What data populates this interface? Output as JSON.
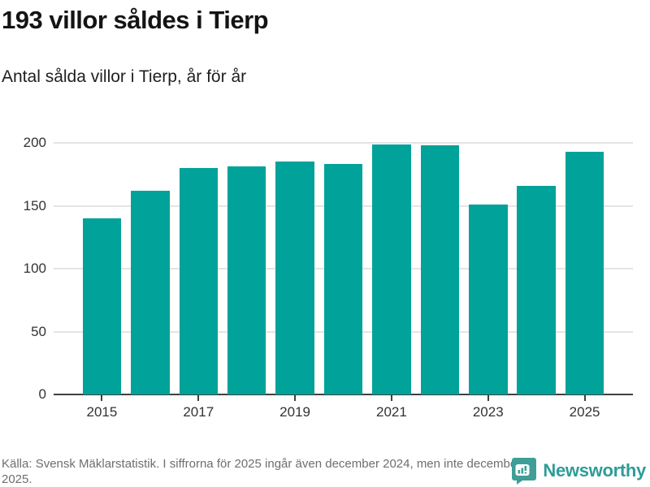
{
  "title": "193 villor såldes i Tierp",
  "subtitle": "Antal sålda villor i Tierp, år för år",
  "footer": {
    "source": "Källa: Svensk Mäklarstatistik. I siffrorna för 2025 ingår även december 2024, men inte december 2025.",
    "brand": "Newsworthy"
  },
  "colors": {
    "bar": "#00a29a",
    "axis": "#404040",
    "grid": "#e4e4e4",
    "brand_teal": "#2e9c96",
    "footer_text": "#6e6e6e"
  },
  "chart_data": {
    "type": "bar",
    "title": "193 villor såldes i Tierp",
    "subtitle": "Antal sålda villor i Tierp, år för år",
    "categories": [
      2015,
      2016,
      2017,
      2018,
      2019,
      2020,
      2021,
      2022,
      2023,
      2024,
      2025
    ],
    "values": [
      140,
      162,
      180,
      181,
      185,
      183,
      199,
      198,
      151,
      166,
      193
    ],
    "xlabel": "",
    "ylabel": "",
    "ylim": [
      0,
      200
    ],
    "y_ticks": [
      0,
      50,
      100,
      150,
      200
    ],
    "x_tick_labels": [
      "2015",
      "2017",
      "2019",
      "2021",
      "2023",
      "2025"
    ],
    "grid": "horizontal",
    "legend": "none",
    "bar_color": "#00a29a"
  }
}
